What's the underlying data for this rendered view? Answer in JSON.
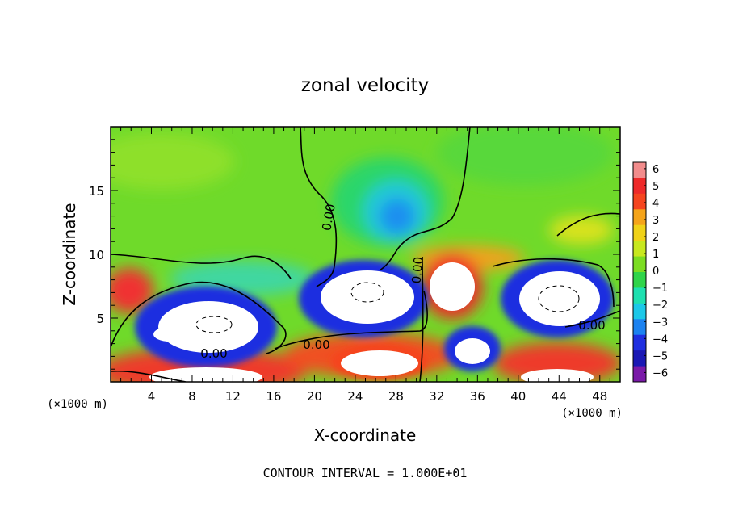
{
  "chart_data": {
    "type": "heatmap",
    "title": "zonal velocity",
    "xlabel": "X-coordinate",
    "ylabel": "Z-coordinate",
    "x_scale_note": "(×1000 m)",
    "z_scale_note": "(×1000 m)",
    "footer": "CONTOUR INTERVAL = 1.000E+01",
    "xlim": [
      0,
      50
    ],
    "ylim": [
      0,
      20
    ],
    "x_ticks": [
      "4",
      "8",
      "12",
      "16",
      "20",
      "24",
      "28",
      "32",
      "36",
      "40",
      "44",
      "48"
    ],
    "y_ticks": [
      "5",
      "10",
      "15"
    ],
    "colorbar": {
      "levels": [
        "6",
        "5",
        "4",
        "3",
        "2",
        "1",
        "0",
        "-1",
        "-2",
        "-3",
        "-4",
        "-5",
        "-6"
      ],
      "colors": [
        "#f28c8c",
        "#ee2a2a",
        "#f5451f",
        "#f5a41a",
        "#f0d218",
        "#c8e81f",
        "#7cdd22",
        "#2fd44a",
        "#1ee0b0",
        "#1cc8e8",
        "#1c82f0",
        "#1f2fe0",
        "#1a18b4",
        "#7a1aa8"
      ]
    },
    "contour_labels": [
      "0.00",
      "0.00",
      "0.00",
      "0.00",
      "0.00"
    ]
  }
}
